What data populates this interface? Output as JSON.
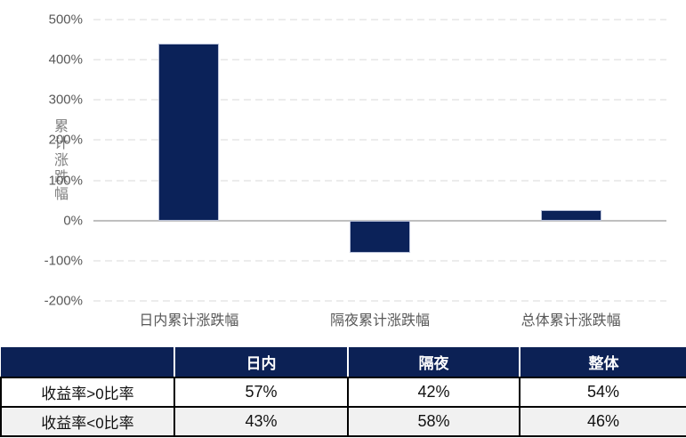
{
  "colors": {
    "bar": "#0B2259",
    "table_header_bg": "#0C2155",
    "gridline": "#D9D9D9",
    "axis_line": "#BFBFBF",
    "tick_text": "#595959",
    "axis_title_text": "#808080",
    "row_alt_bg": "#F1F1F1",
    "table_border": "#000000"
  },
  "chart_data": {
    "type": "bar",
    "title": "",
    "xlabel": "",
    "ylabel": "累计涨跌幅",
    "categories": [
      "日内累计涨跌幅",
      "隔夜累计涨跌幅",
      "总体累计涨跌幅"
    ],
    "values": [
      440,
      -80,
      25
    ],
    "ylim": [
      -200,
      500
    ],
    "yticks": [
      500,
      400,
      300,
      200,
      100,
      0,
      -100,
      -200
    ],
    "ytick_suffix": "%",
    "grid": "horizontal-dashed",
    "legend": "none",
    "bar_color": "#0B2259"
  },
  "table": {
    "columns": [
      "",
      "日内",
      "隔夜",
      "整体"
    ],
    "rows": [
      {
        "label": "收益率>0比率",
        "values": [
          "57%",
          "42%",
          "54%"
        ]
      },
      {
        "label": "收益率<0比率",
        "values": [
          "43%",
          "58%",
          "46%"
        ]
      }
    ]
  }
}
